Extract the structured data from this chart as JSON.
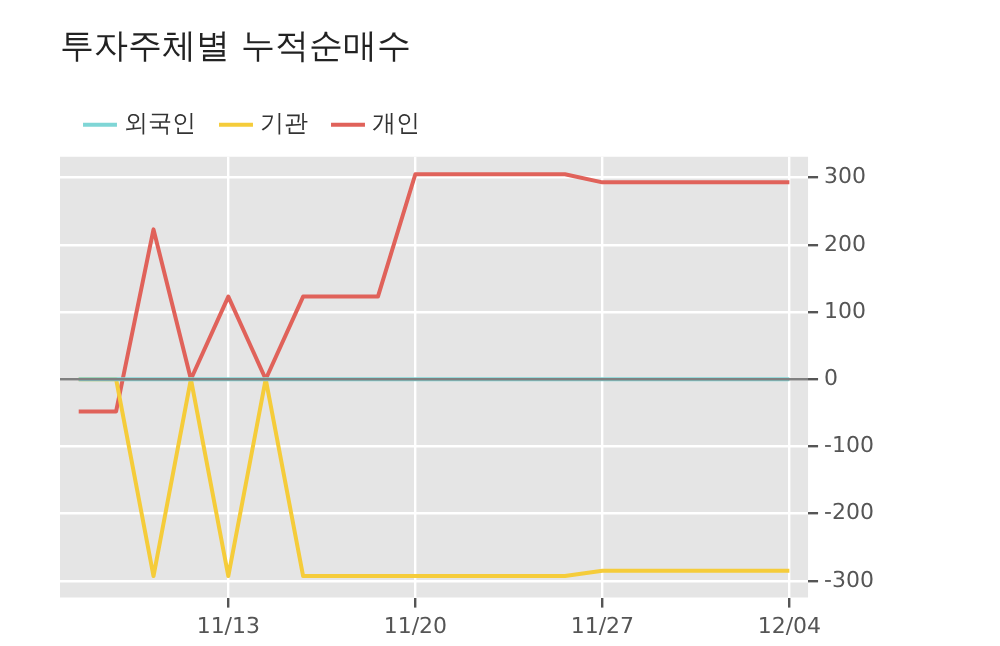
{
  "chart_data": {
    "type": "line",
    "title": "투자주체별 누적순매수",
    "categories": [
      null,
      null,
      null,
      null,
      "11/13",
      null,
      null,
      null,
      null,
      "11/20",
      null,
      null,
      null,
      null,
      "11/27",
      null,
      null,
      null,
      null,
      "12/04"
    ],
    "series": [
      {
        "name": "외국인",
        "color": "#7fd6d6",
        "values": [
          0,
          0,
          0,
          0,
          0,
          0,
          0,
          0,
          0,
          0,
          0,
          0,
          0,
          0,
          0,
          0,
          0,
          0,
          0,
          0
        ]
      },
      {
        "name": "기관",
        "color": "#f5cc3a",
        "values": [
          0,
          0,
          -293,
          0,
          -293,
          0,
          -293,
          -293,
          -293,
          -293,
          -293,
          -293,
          -293,
          -293,
          -285,
          -285,
          -285,
          -285,
          -285,
          -285
        ]
      },
      {
        "name": "개인",
        "color": "#e0625a",
        "values": [
          -48,
          -48,
          223,
          0,
          123,
          0,
          123,
          123,
          123,
          305,
          305,
          305,
          305,
          305,
          293,
          293,
          293,
          293,
          293,
          293
        ]
      }
    ],
    "ylim": [
      -325,
      331
    ],
    "yticks": [
      -300,
      -200,
      -100,
      0,
      100,
      200,
      300
    ],
    "ref_lines": [
      {
        "axis": "y",
        "value": 0,
        "color": "#808080"
      }
    ],
    "grid": true,
    "legend": "top left",
    "marker": "none",
    "line_style": "solid"
  }
}
